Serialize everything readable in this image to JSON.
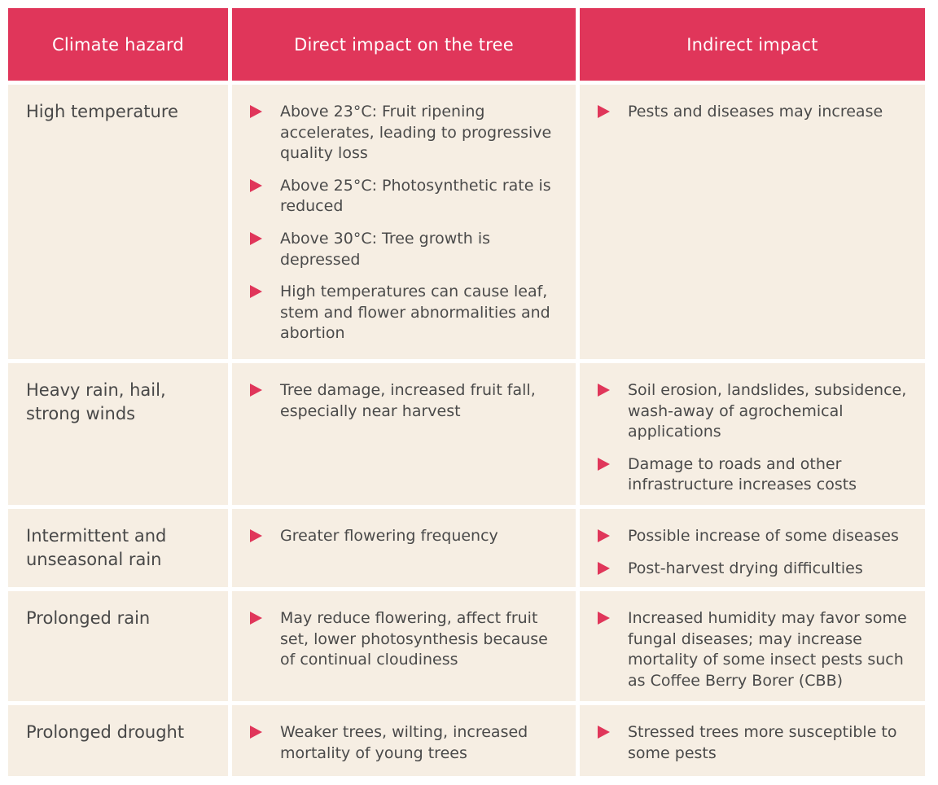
{
  "headers": {
    "hazard": "Climate hazard",
    "direct": "Direct impact on the tree",
    "indirect": "Indirect impact"
  },
  "rows": [
    {
      "hazard": "High temperature",
      "direct": [
        "Above 23°C: Fruit ripening accelerates, leading to progressive quality loss",
        "Above 25°C: Photosynthetic rate is reduced",
        "Above 30°C: Tree growth is depressed",
        "High temperatures can cause leaf, stem and flower abnormalities and abortion"
      ],
      "indirect": [
        "Pests and diseases may increase"
      ]
    },
    {
      "hazard": "Heavy rain, hail, strong winds",
      "direct": [
        "Tree damage, increased fruit fall, especially near harvest"
      ],
      "indirect": [
        "Soil erosion, landslides, subsidence, wash-away of agrochemical applications",
        "Damage to roads and other infrastructure increases costs"
      ]
    },
    {
      "hazard": "Intermittent and unseasonal rain",
      "direct": [
        "Greater flowering frequency"
      ],
      "indirect": [
        "Possible increase of some diseases",
        "Post-harvest drying difficulties"
      ]
    },
    {
      "hazard": "Prolonged rain",
      "direct": [
        "May reduce flowering, affect fruit set, lower photosynthesis because of continual cloudiness"
      ],
      "indirect": [
        "Increased humidity may favor some fungal diseases; may increase mortality of some insect pests such as Coffee Berry Borer (CBB)"
      ]
    },
    {
      "hazard": "Prolonged drought",
      "direct": [
        "Weaker trees, wilting, increased mortality of young trees"
      ],
      "indirect": [
        "Stressed trees more susceptible to some pests"
      ]
    }
  ],
  "colors": {
    "header_bg": "#e0365a",
    "cell_bg": "#f6eee3",
    "bullet": "#e0365a",
    "text": "#4a4a4a"
  }
}
